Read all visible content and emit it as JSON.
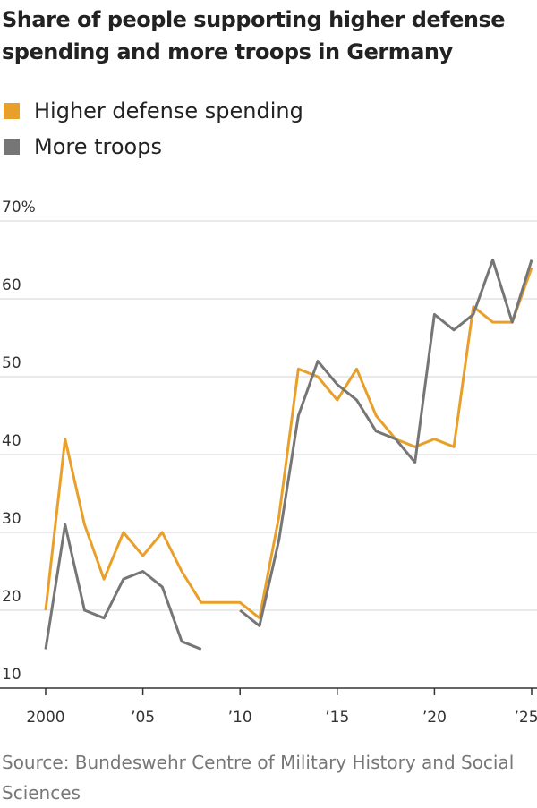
{
  "chart_data": {
    "type": "line",
    "title": "Share of people supporting higher defense spending and more troops in Germany",
    "source": "Source: Bundeswehr Centre of Military History and Social Sciences",
    "x": [
      2000,
      2001,
      2002,
      2003,
      2004,
      2005,
      2006,
      2007,
      2008,
      2009,
      2010,
      2011,
      2012,
      2013,
      2014,
      2015,
      2016,
      2017,
      2018,
      2019,
      2020,
      2021,
      2022,
      2023,
      2024,
      2025
    ],
    "series": [
      {
        "name": "Higher defense spending",
        "color": "#e8a02a",
        "values": [
          20,
          42,
          31,
          24,
          30,
          27,
          30,
          25,
          21,
          21,
          21,
          19,
          32,
          51,
          50,
          47,
          51,
          45,
          42,
          41,
          42,
          41,
          59,
          57,
          57,
          64
        ]
      },
      {
        "name": "More troops",
        "color": "#767676",
        "values": [
          15,
          31,
          20,
          19,
          24,
          25,
          23,
          16,
          15,
          null,
          20,
          18,
          29,
          45,
          52,
          49,
          47,
          43,
          42,
          39,
          58,
          56,
          58,
          65,
          57,
          65
        ]
      }
    ],
    "xlim": [
      2000,
      2025
    ],
    "xticks": [
      2000,
      {
        "value": 2005,
        "label": "’05"
      },
      {
        "value": 2010,
        "label": "’10"
      },
      {
        "value": 2015,
        "label": "’15"
      },
      {
        "value": 2020,
        "label": "’20"
      },
      {
        "value": 2025,
        "label": "’25"
      }
    ],
    "ylim": [
      10,
      70
    ],
    "yticks": [
      10,
      20,
      30,
      40,
      50,
      60,
      {
        "value": 70,
        "label": "70%"
      }
    ],
    "grid": true
  }
}
